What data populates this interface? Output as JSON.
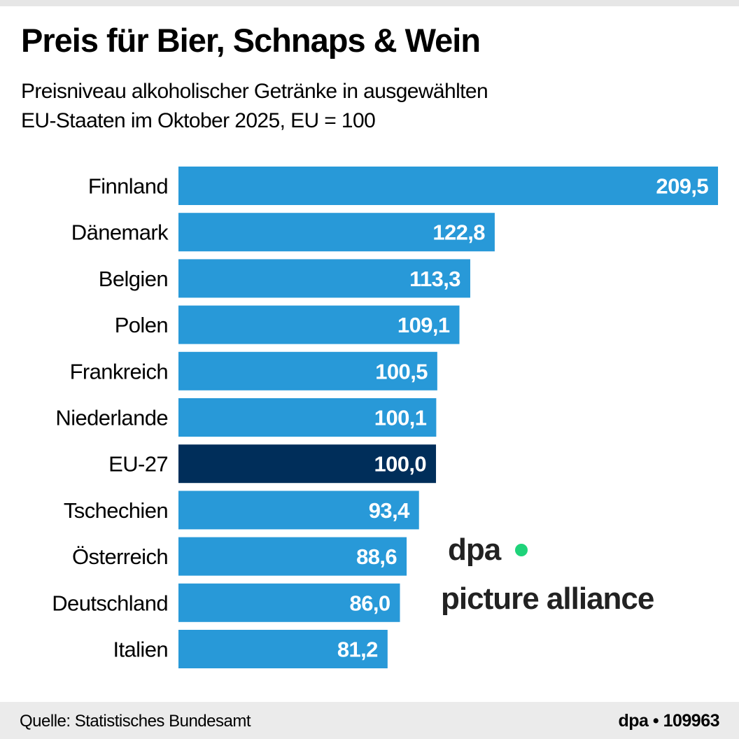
{
  "title": "Preis für Bier, Schnaps & Wein",
  "subtitle_lines": [
    "Preisniveau alkoholischer Getränke in ausgewählten",
    "EU-Staaten im Oktober 2025, EU = 100"
  ],
  "footer": {
    "source": "Quelle: Statistisches Bundesamt",
    "credit": "dpa • 109963"
  },
  "watermark": {
    "text_left": "dpa",
    "text_right": "picture alliance",
    "dot_color": "#1fd37a"
  },
  "colors": {
    "bar": "#2899d8",
    "highlight": "#002e5a",
    "value_label": "#ffffff"
  },
  "chart_data": {
    "type": "bar",
    "orientation": "horizontal",
    "title": "Preis für Bier, Schnaps & Wein",
    "categories": [
      "Finnland",
      "Dänemark",
      "Belgien",
      "Polen",
      "Frankreich",
      "Niederlande",
      "EU-27",
      "Tschechien",
      "Österreich",
      "Deutschland",
      "Italien"
    ],
    "values": [
      209.5,
      122.8,
      113.3,
      109.1,
      100.5,
      100.1,
      100.0,
      93.4,
      88.6,
      86.0,
      81.2
    ],
    "value_labels": [
      "209,5",
      "122,8",
      "113,3",
      "109,1",
      "100,5",
      "100,1",
      "100,0",
      "93,4",
      "88,6",
      "86,0",
      "81,2"
    ],
    "value_estimated": [
      false,
      false,
      false,
      false,
      true,
      false,
      false,
      false,
      false,
      false,
      false
    ],
    "highlight_category": "EU-27",
    "xlim": [
      0,
      209.5
    ],
    "grid": false,
    "legend": "none"
  }
}
